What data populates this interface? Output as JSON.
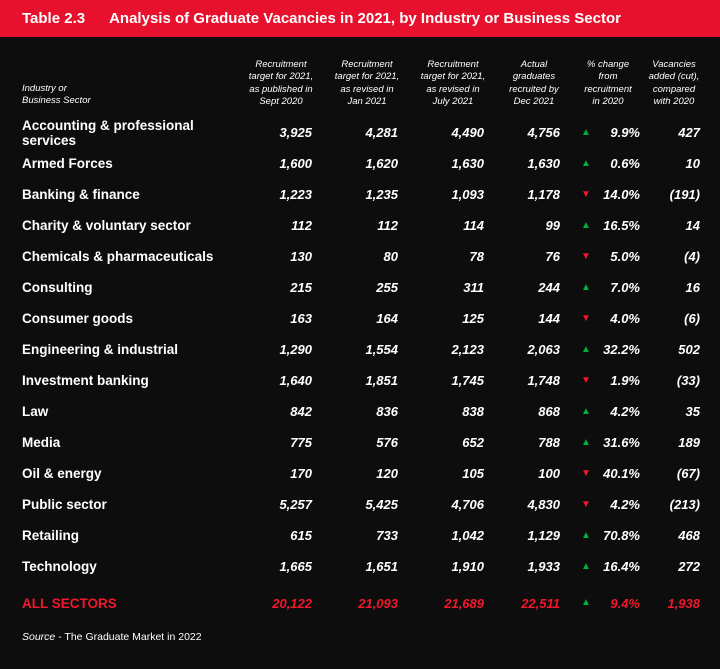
{
  "header": {
    "label": "Table 2.3",
    "title": "Analysis of Graduate Vacancies in 2021, by Industry or Business Sector"
  },
  "colors": {
    "banner": "#e8112d",
    "background": "#0d0d0d",
    "text": "#ffffff",
    "green": "#00b140",
    "red": "#f3172d"
  },
  "icons": {
    "up_arrow": "▲",
    "down_arrow": "▼"
  },
  "source": {
    "prefix": "Source",
    "text": "- The Graduate Market in 2022"
  },
  "chart_data": {
    "type": "table",
    "title": "Analysis of Graduate Vacancies in 2021, by Industry or Business Sector",
    "columns": [
      "Industry or\nBusiness Sector",
      "Recruitment\ntarget for 2021,\nas published in\nSept 2020",
      "Recruitment\ntarget for 2021,\nas revised in\nJan 2021",
      "Recruitment\ntarget for 2021,\nas revised in\nJuly 2021",
      "Actual\ngraduates\nrecruited by\nDec 2021",
      "% change\nfrom\nrecruitment\nin 2020",
      "Vacancies\nadded (cut),\ncompared\nwith 2020"
    ],
    "rows": [
      {
        "sector": "Accounting & professional services",
        "c1": "3,925",
        "c2": "4,281",
        "c3": "4,490",
        "c4": "4,756",
        "arrow": "▲",
        "dir": "up",
        "pct": "9.9%",
        "vac": "427"
      },
      {
        "sector": "Armed Forces",
        "c1": "1,600",
        "c2": "1,620",
        "c3": "1,630",
        "c4": "1,630",
        "arrow": "▲",
        "dir": "up",
        "pct": "0.6%",
        "vac": "10"
      },
      {
        "sector": "Banking & finance",
        "c1": "1,223",
        "c2": "1,235",
        "c3": "1,093",
        "c4": "1,178",
        "arrow": "▼",
        "dir": "down",
        "pct": "14.0%",
        "vac": "(191)"
      },
      {
        "sector": "Charity & voluntary sector",
        "c1": "112",
        "c2": "112",
        "c3": "114",
        "c4": "99",
        "arrow": "▲",
        "dir": "up",
        "pct": "16.5%",
        "vac": "14"
      },
      {
        "sector": "Chemicals & pharmaceuticals",
        "c1": "130",
        "c2": "80",
        "c3": "78",
        "c4": "76",
        "arrow": "▼",
        "dir": "down",
        "pct": "5.0%",
        "vac": "(4)"
      },
      {
        "sector": "Consulting",
        "c1": "215",
        "c2": "255",
        "c3": "311",
        "c4": "244",
        "arrow": "▲",
        "dir": "up",
        "pct": "7.0%",
        "vac": "16"
      },
      {
        "sector": "Consumer goods",
        "c1": "163",
        "c2": "164",
        "c3": "125",
        "c4": "144",
        "arrow": "▼",
        "dir": "down",
        "pct": "4.0%",
        "vac": "(6)"
      },
      {
        "sector": "Engineering & industrial",
        "c1": "1,290",
        "c2": "1,554",
        "c3": "2,123",
        "c4": "2,063",
        "arrow": "▲",
        "dir": "up",
        "pct": "32.2%",
        "vac": "502"
      },
      {
        "sector": "Investment banking",
        "c1": "1,640",
        "c2": "1,851",
        "c3": "1,745",
        "c4": "1,748",
        "arrow": "▼",
        "dir": "down",
        "pct": "1.9%",
        "vac": "(33)"
      },
      {
        "sector": "Law",
        "c1": "842",
        "c2": "836",
        "c3": "838",
        "c4": "868",
        "arrow": "▲",
        "dir": "up",
        "pct": "4.2%",
        "vac": "35"
      },
      {
        "sector": "Media",
        "c1": "775",
        "c2": "576",
        "c3": "652",
        "c4": "788",
        "arrow": "▲",
        "dir": "up",
        "pct": "31.6%",
        "vac": "189"
      },
      {
        "sector": "Oil & energy",
        "c1": "170",
        "c2": "120",
        "c3": "105",
        "c4": "100",
        "arrow": "▼",
        "dir": "down",
        "pct": "40.1%",
        "vac": "(67)"
      },
      {
        "sector": "Public sector",
        "c1": "5,257",
        "c2": "5,425",
        "c3": "4,706",
        "c4": "4,830",
        "arrow": "▼",
        "dir": "down",
        "pct": "4.2%",
        "vac": "(213)"
      },
      {
        "sector": "Retailing",
        "c1": "615",
        "c2": "733",
        "c3": "1,042",
        "c4": "1,129",
        "arrow": "▲",
        "dir": "up",
        "pct": "70.8%",
        "vac": "468"
      },
      {
        "sector": "Technology",
        "c1": "1,665",
        "c2": "1,651",
        "c3": "1,910",
        "c4": "1,933",
        "arrow": "▲",
        "dir": "up",
        "pct": "16.4%",
        "vac": "272"
      }
    ],
    "total": {
      "sector": "ALL SECTORS",
      "c1": "20,122",
      "c2": "21,093",
      "c3": "21,689",
      "c4": "22,511",
      "arrow": "▲",
      "dir": "up",
      "pct": "9.4%",
      "vac": "1,938"
    }
  }
}
